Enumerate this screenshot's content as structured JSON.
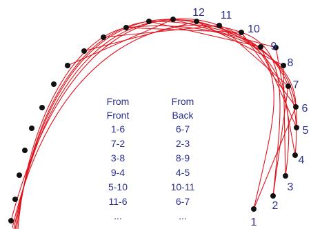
{
  "colors": {
    "thread": "#e0111b",
    "hole": "#111111",
    "label": "#2a2f8c"
  },
  "labels": [
    "1",
    "2",
    "3",
    "4",
    "5",
    "6",
    "7",
    "8",
    "9",
    "10",
    "11",
    "12"
  ],
  "columns": [
    {
      "header": [
        "From",
        "Front"
      ],
      "rows": [
        "1-6",
        "7-2",
        "3-8",
        "9-4",
        "5-10",
        "11-6",
        "..."
      ]
    },
    {
      "header": [
        "From",
        "Back"
      ],
      "rows": [
        "6-7",
        "2-3",
        "8-9",
        "4-5",
        "10-11",
        "6-7",
        "..."
      ]
    }
  ]
}
